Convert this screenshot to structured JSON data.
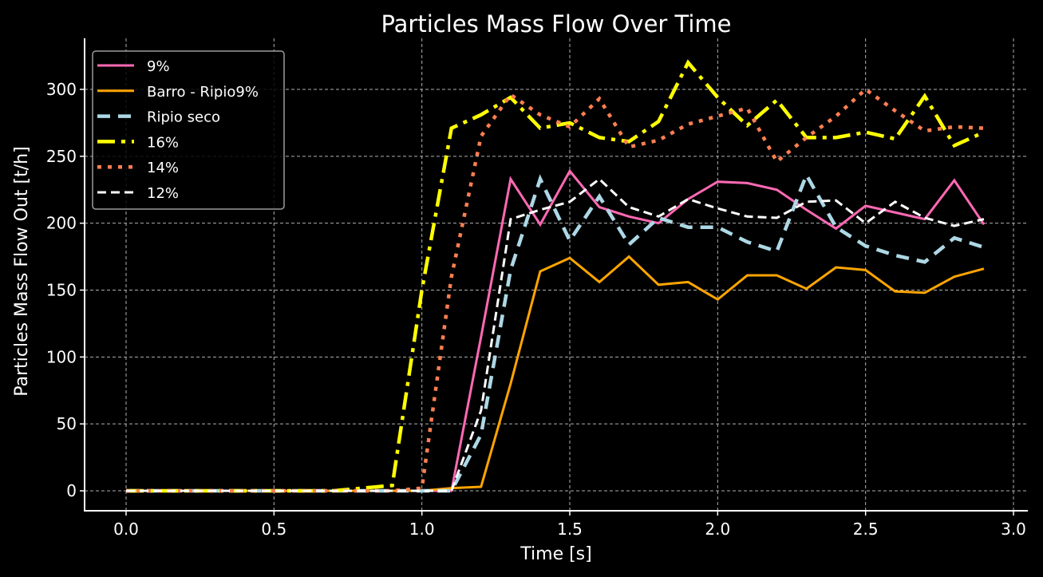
{
  "chart_data": {
    "type": "line",
    "title": "Particles Mass Flow Over Time",
    "xlabel": "Time [s]",
    "ylabel": "Particles Mass Flow Out [t/h]",
    "xlim": [
      -0.13,
      3.05
    ],
    "ylim": [
      -15,
      335
    ],
    "xticks": [
      0.0,
      0.5,
      1.0,
      1.5,
      2.0,
      2.5,
      3.0
    ],
    "xtick_labels": [
      "0.0",
      "0.5",
      "1.0",
      "1.5",
      "2.0",
      "2.5",
      "3.0"
    ],
    "yticks": [
      0,
      50,
      100,
      150,
      200,
      250,
      300
    ],
    "ytick_labels": [
      "0",
      "50",
      "100",
      "150",
      "200",
      "250",
      "300"
    ],
    "grid": true,
    "legend_position": "top-left",
    "x": [
      0.0,
      0.1,
      0.2,
      0.3,
      0.4,
      0.5,
      0.6,
      0.7,
      0.8,
      0.9,
      1.0,
      1.1,
      1.2,
      1.3,
      1.4,
      1.5,
      1.6,
      1.7,
      1.8,
      1.9,
      2.0,
      2.1,
      2.2,
      2.3,
      2.4,
      2.5,
      2.6,
      2.7,
      2.8,
      2.9
    ],
    "series": [
      {
        "name": "9%",
        "color": "#ff69b4",
        "style": "solid",
        "values": [
          0,
          0,
          0,
          0,
          0,
          0,
          0,
          0,
          0,
          0,
          0,
          0,
          115,
          233,
          199,
          239,
          212,
          205,
          200,
          218,
          231,
          230,
          225,
          210,
          196,
          213,
          208,
          203,
          232,
          199
        ]
      },
      {
        "name": "Barro - Ripio9%",
        "color": "#ffa500",
        "style": "solid",
        "values": [
          0,
          0,
          0,
          0,
          0,
          0,
          0,
          0,
          0,
          0,
          0,
          2,
          3,
          80,
          164,
          174,
          156,
          175,
          154,
          156,
          143,
          161,
          161,
          151,
          167,
          165,
          149,
          148,
          160,
          166
        ]
      },
      {
        "name": "Ripio seco",
        "color": "#add8e6",
        "style": "dashed",
        "values": [
          0,
          0,
          0,
          0,
          0,
          0,
          0,
          0,
          0,
          0,
          0,
          0,
          42,
          165,
          233,
          187,
          220,
          184,
          204,
          197,
          197,
          186,
          179,
          236,
          197,
          183,
          176,
          171,
          189,
          182
        ]
      },
      {
        "name": "16%",
        "color": "#ffff00",
        "style": "dashdot",
        "values": [
          0,
          0,
          0,
          0,
          0,
          0,
          0,
          0,
          2,
          4,
          150,
          271,
          281,
          294,
          271,
          275,
          264,
          261,
          276,
          320,
          294,
          273,
          292,
          264,
          264,
          268,
          263,
          295,
          258,
          268
        ]
      },
      {
        "name": "14%",
        "color": "#ff7f50",
        "style": "dotted",
        "values": [
          0,
          0,
          0,
          0,
          0,
          0,
          0,
          0,
          0,
          0,
          2,
          160,
          265,
          296,
          281,
          272,
          293,
          257,
          262,
          274,
          280,
          286,
          246,
          264,
          280,
          300,
          284,
          269,
          272,
          271
        ]
      },
      {
        "name": "12%",
        "color": "#ffffff",
        "style": "dashed",
        "values": [
          0,
          0,
          0,
          0,
          0,
          0,
          0,
          0,
          0,
          0,
          0,
          0,
          60,
          203,
          210,
          216,
          233,
          212,
          205,
          218,
          211,
          205,
          204,
          216,
          217,
          200,
          216,
          204,
          198,
          203
        ]
      }
    ]
  }
}
